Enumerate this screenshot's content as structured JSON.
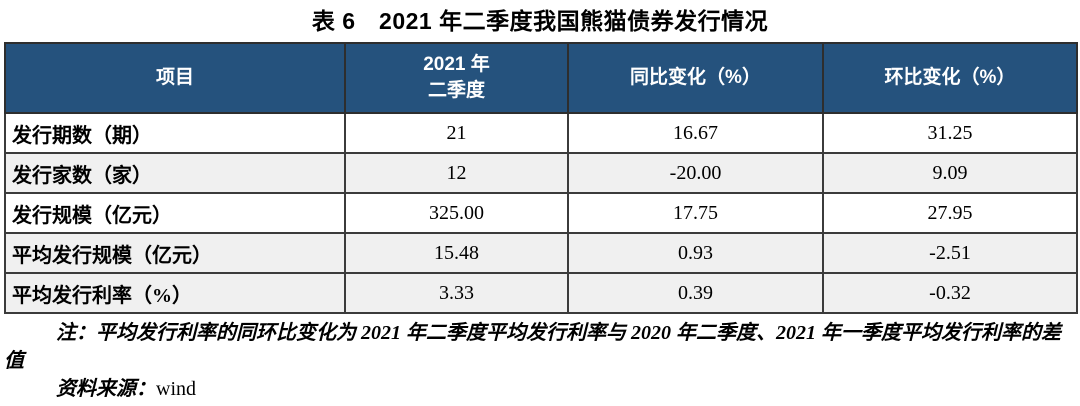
{
  "page": {
    "title": "表 6　2021 年二季度我国熊猫债券发行情况"
  },
  "table": {
    "headers": {
      "item": "项目",
      "period": "2021 年\n二季度",
      "yoy": "同比变化（%）",
      "qoq": "环比变化（%）"
    },
    "rows": [
      {
        "label": "发行期数（期）",
        "q2_2021": "21",
        "yoy_change": "16.67",
        "qoq_change": "31.25"
      },
      {
        "label": "发行家数（家）",
        "q2_2021": "12",
        "yoy_change": "-20.00",
        "qoq_change": "9.09"
      },
      {
        "label": "发行规模（亿元）",
        "q2_2021": "325.00",
        "yoy_change": "17.75",
        "qoq_change": "27.95"
      },
      {
        "label": "平均发行规模（亿元）",
        "q2_2021": "15.48",
        "yoy_change": "0.93",
        "qoq_change": "-2.51"
      },
      {
        "label": "平均发行利率（%）",
        "q2_2021": "3.33",
        "yoy_change": "0.39",
        "qoq_change": "-0.32"
      }
    ]
  },
  "footnote": {
    "note": "注：平均发行利率的同环比变化为 2021 年二季度平均发行利率与 2020 年二季度、2021 年一季度平均发行利率的差值",
    "source_label": "资料来源：",
    "source_value": "wind"
  },
  "colors": {
    "header_bg": "#25527D",
    "header_text": "#FFFFFF",
    "shaded_row_bg": "#F0F0F0",
    "border": "#3B3B3B"
  }
}
